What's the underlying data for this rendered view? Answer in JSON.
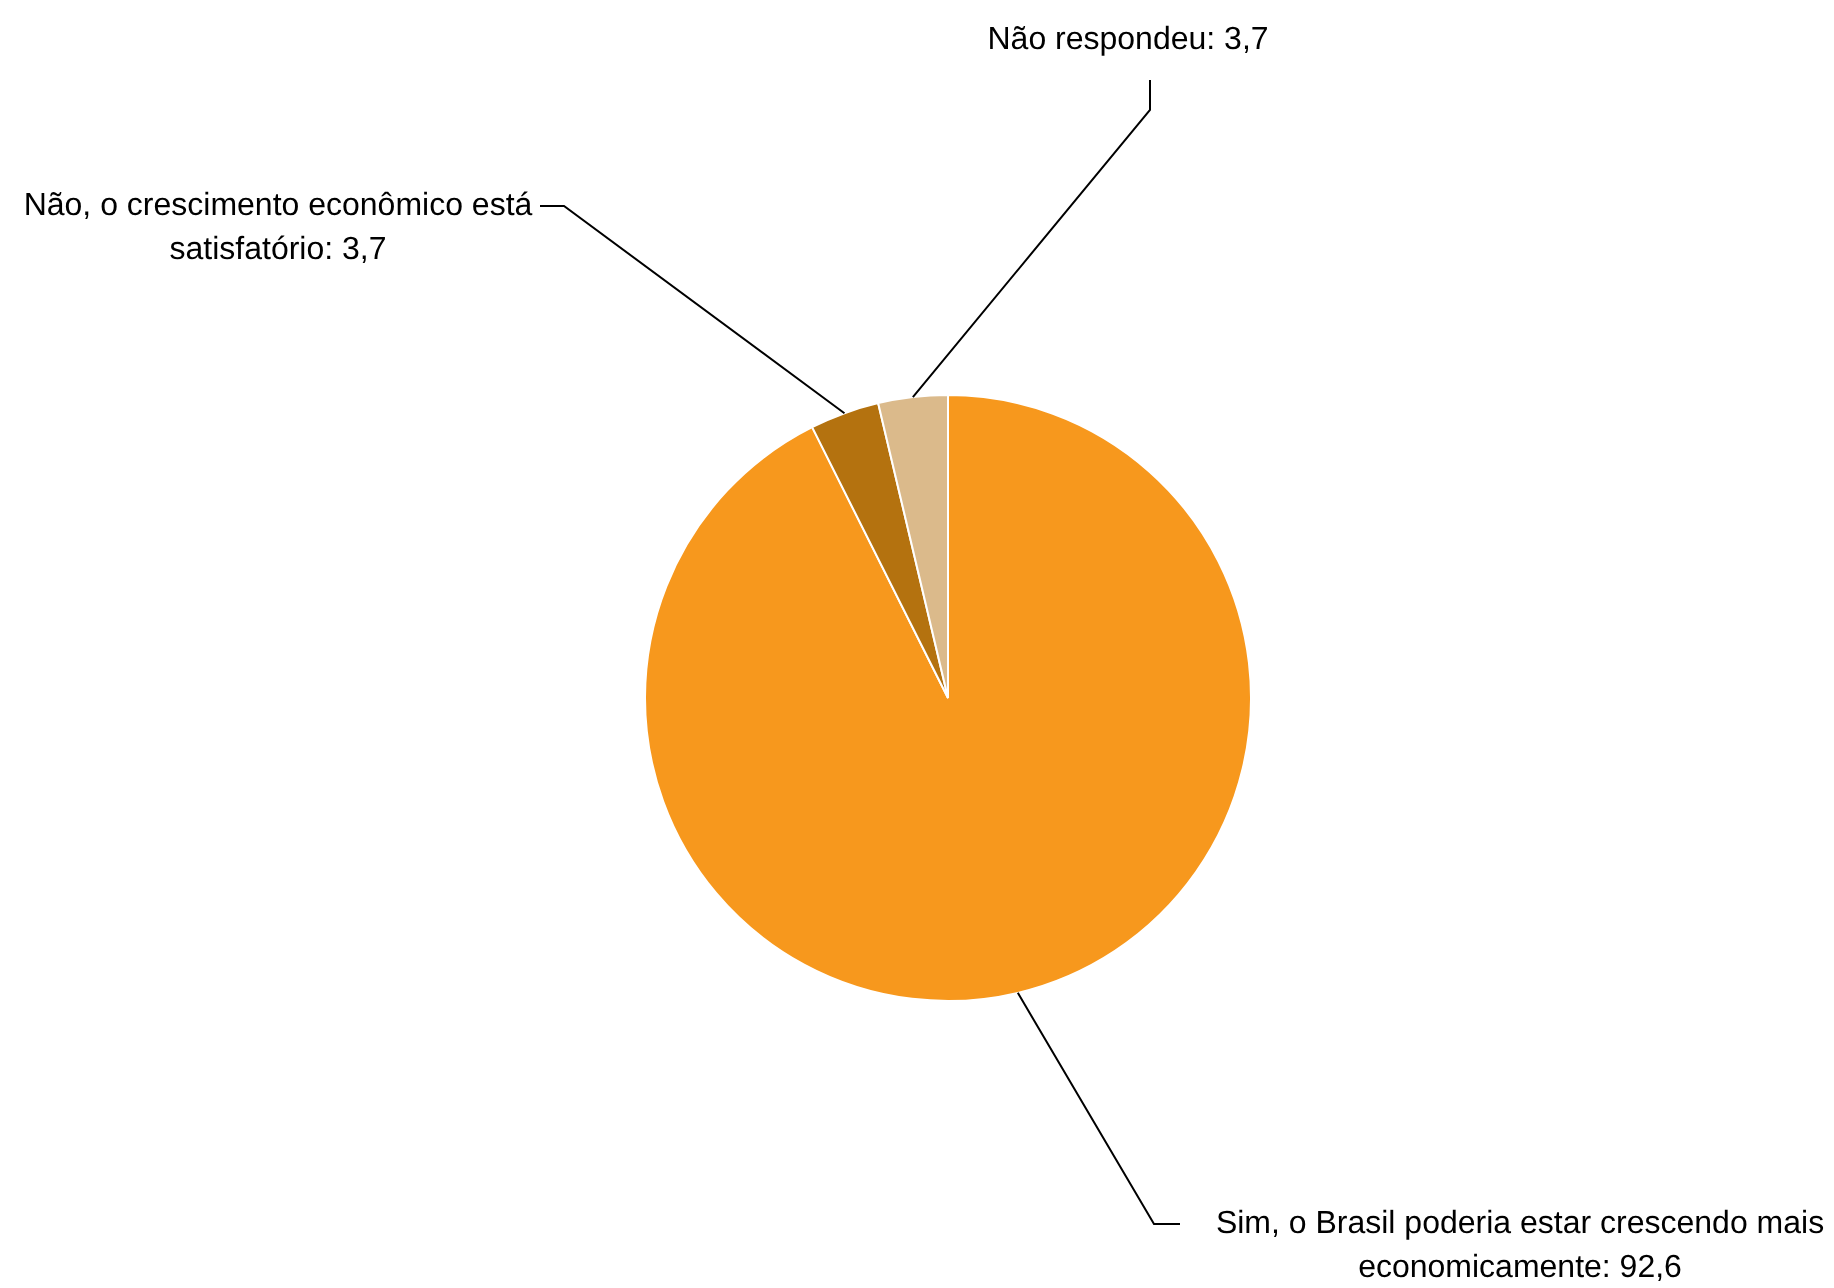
{
  "chart_data": {
    "type": "pie",
    "categories": [
      "Sim, o Brasil poderia estar crescendo mais economicamente",
      "Não, o crescimento econômico está satisfatório",
      "Não respondeu"
    ],
    "values": [
      92.6,
      3.7,
      3.7
    ],
    "value_labels": [
      "92,6",
      "3,7",
      "3,7"
    ],
    "colors": [
      "#f7981d",
      "#b4720f",
      "#dbba8b"
    ],
    "legend": false
  }
}
